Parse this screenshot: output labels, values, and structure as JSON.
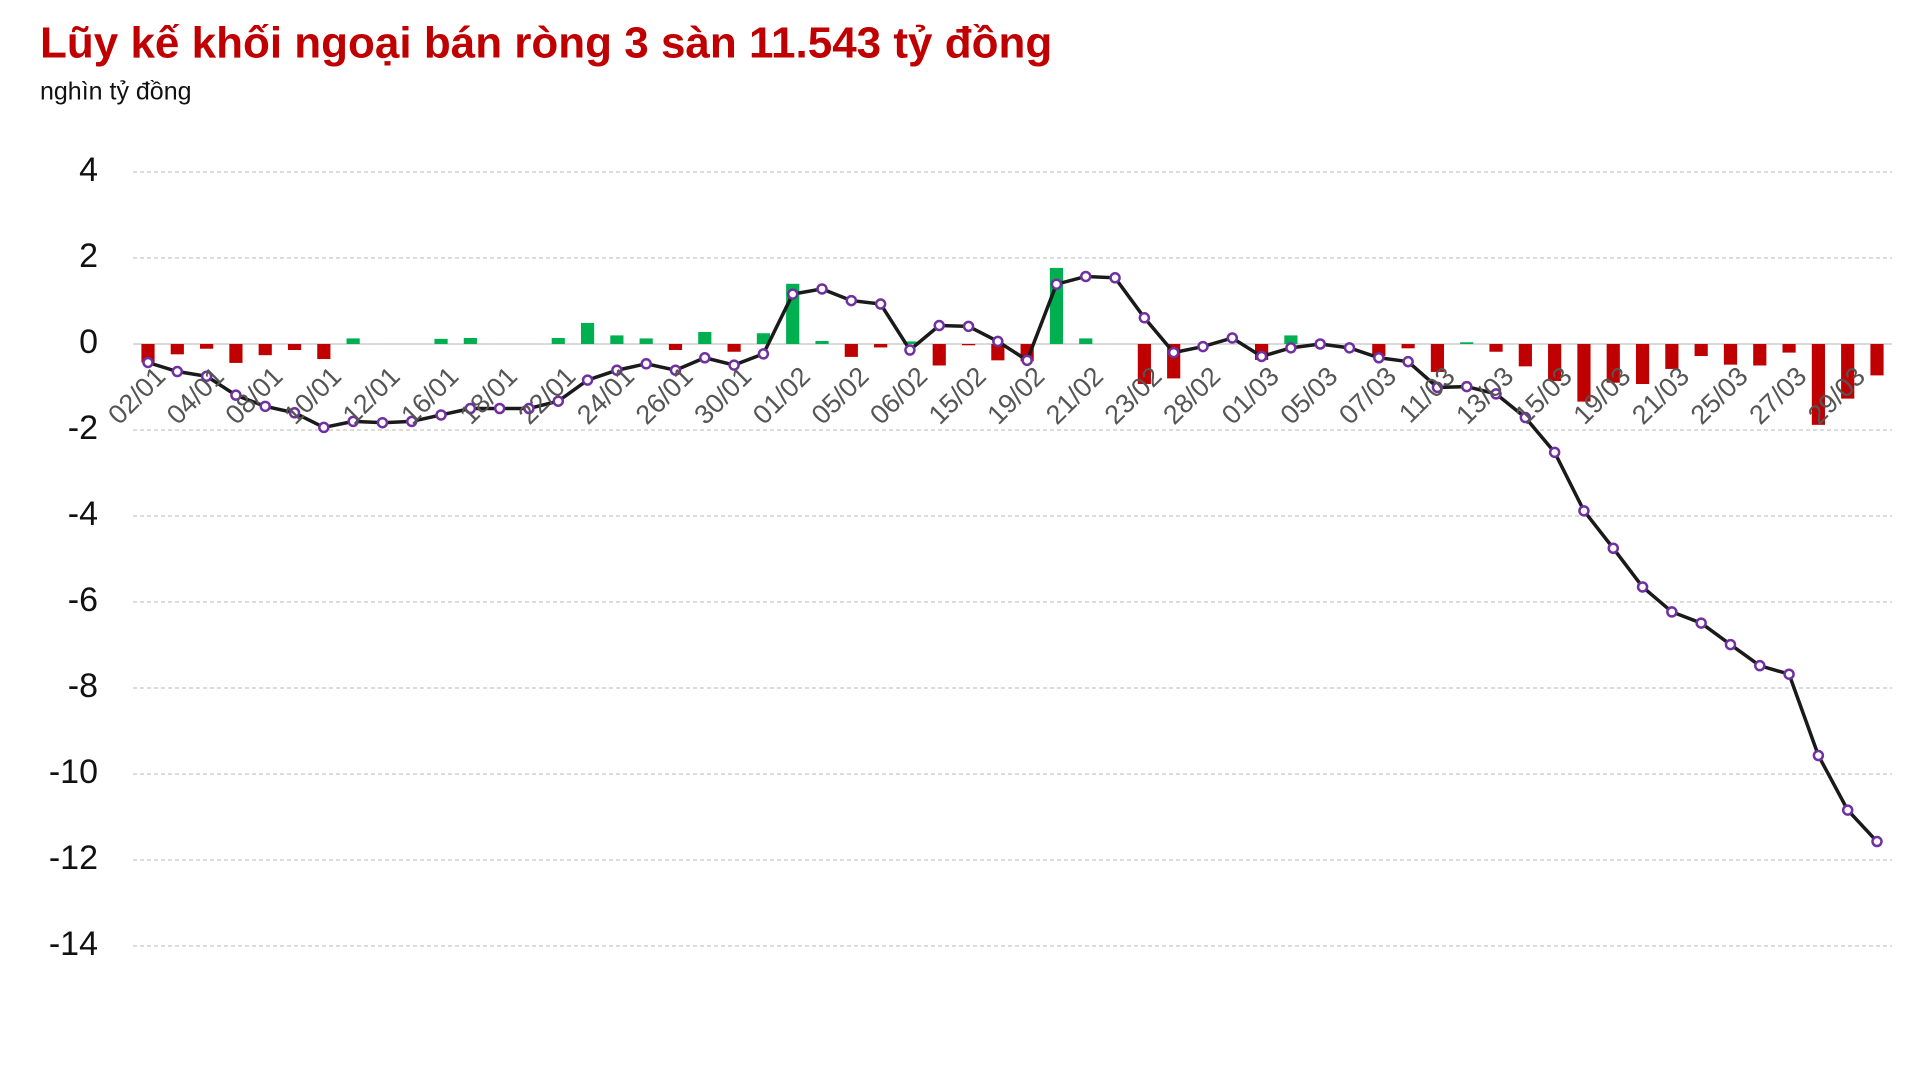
{
  "chart_data": {
    "type": "combo",
    "title": "Lũy kế khối ngoại bán ròng 3 sàn 11.543 tỷ đồng",
    "subtitle": "nghìn tỷ đồng",
    "categories": [
      "02/01",
      null,
      "04/01",
      null,
      "08/01",
      null,
      "10/01",
      null,
      "12/01",
      null,
      "16/01",
      null,
      "18/01",
      null,
      "22/01",
      null,
      "24/01",
      null,
      "26/01",
      null,
      "30/01",
      null,
      "01/02",
      null,
      "05/02",
      null,
      "06/02",
      null,
      "15/02",
      null,
      "19/02",
      null,
      "21/02",
      null,
      "23/02",
      null,
      "28/02",
      null,
      "01/03",
      null,
      "05/03",
      null,
      "07/03",
      null,
      "11/03",
      null,
      "13/03",
      null,
      "15/03",
      null,
      "19/03",
      null,
      "21/03",
      null,
      "25/03",
      null,
      "27/03",
      null,
      "29/03",
      null
    ],
    "series": [
      {
        "type": "bar",
        "color": "#00b050",
        "negative_color": "#c00000",
        "values": [
          -0.43,
          -0.24,
          -0.11,
          -0.44,
          -0.26,
          -0.14,
          -0.35,
          0.13,
          0,
          0,
          0.12,
          0.14,
          0,
          0,
          0.14,
          0.49,
          0.2,
          0.13,
          -0.14,
          0.28,
          -0.18,
          0.25,
          1.4,
          0.07,
          -0.3,
          -0.08,
          0.06,
          -0.5,
          -0.03,
          -0.38,
          -0.4,
          1.77,
          0.13,
          0,
          -0.93,
          -0.8,
          0,
          0,
          -0.37,
          0.2,
          0,
          0,
          -0.28,
          -0.1,
          -0.65,
          0.04,
          -0.18,
          -0.52,
          -0.86,
          -1.34,
          -0.9,
          -0.93,
          -0.58,
          -0.28,
          -0.48,
          -0.5,
          -0.2,
          -1.88,
          -1.27,
          -0.73
        ]
      },
      {
        "type": "line",
        "color": "#1a1a1a",
        "marker_color": "#7030a0",
        "values": [
          -0.43,
          -0.64,
          -0.75,
          -1.19,
          -1.45,
          -1.6,
          -1.94,
          -1.8,
          -1.83,
          -1.8,
          -1.65,
          -1.5,
          -1.5,
          -1.5,
          -1.33,
          -0.84,
          -0.61,
          -0.46,
          -0.61,
          -0.32,
          -0.49,
          -0.23,
          1.16,
          1.28,
          1.01,
          0.93,
          -0.14,
          0.43,
          0.41,
          0.06,
          -0.38,
          1.39,
          1.57,
          1.54,
          0.61,
          -0.2,
          -0.06,
          0.14,
          -0.29,
          -0.09,
          0,
          -0.09,
          -0.32,
          -0.41,
          -1.01,
          -0.99,
          -1.16,
          -1.71,
          -2.52,
          -3.88,
          -4.75,
          -5.65,
          -6.23,
          -6.49,
          -6.99,
          -7.48,
          -7.68,
          -9.57,
          -10.84,
          -11.57
        ]
      }
    ],
    "ylim": [
      -14,
      4
    ],
    "yticks": [
      -14,
      -12,
      -10,
      -8,
      -6,
      -4,
      -2,
      0,
      2,
      4
    ],
    "grid": true
  }
}
